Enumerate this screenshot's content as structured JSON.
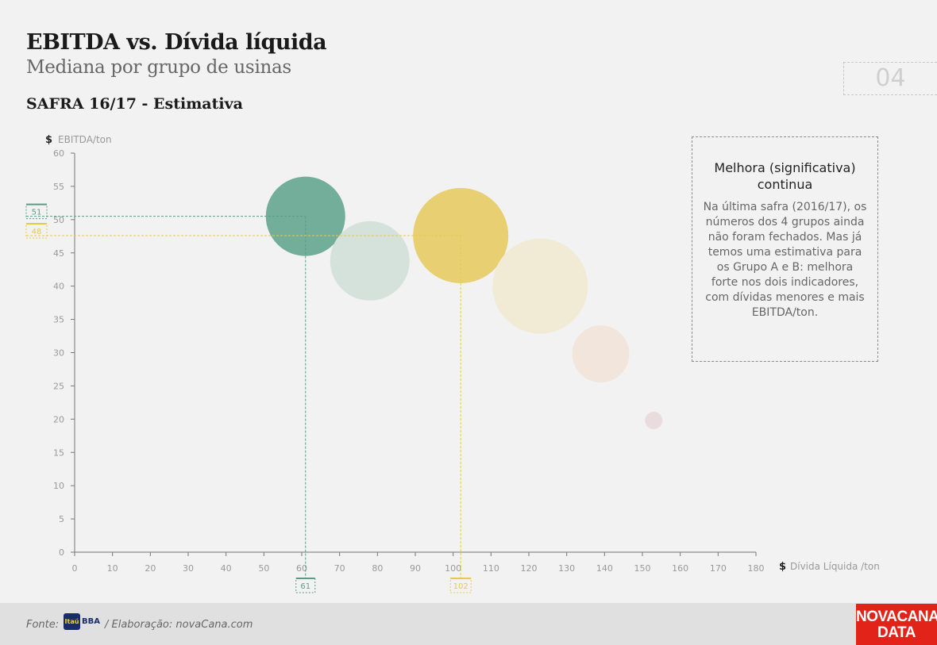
{
  "header": {
    "title": "EBITDA vs. Dívida líquida",
    "subtitle": "Mediana por grupo de usinas",
    "safra": "SAFRA 16/17 - Estimativa",
    "page_number": "04"
  },
  "note": {
    "title": "Melhora (significativa) continua",
    "body": "Na última safra (2016/17), os números dos 4 grupos ainda não foram fechados. Mas já temos uma estimativa para os Grupo A e B: melhora forte nos dois indicadores, com dívidas menores e mais EBITDA/ton."
  },
  "footer": {
    "fonte_label": "Fonte:",
    "logo_text": "Itaú",
    "logo_suffix": "BBA",
    "elaboracao": "/ Elaboração: novaCana.com"
  },
  "brand": {
    "line1": "NOVACANA",
    "line2": "DATA"
  },
  "chart_data": {
    "type": "scatter",
    "title": "EBITDA vs. Dívida líquida",
    "subtitle": "Mediana por grupo de usinas",
    "xlabel": "$ Dívida  Líquida /ton",
    "ylabel": "$ EBITDA/ton",
    "xlim": [
      0,
      180
    ],
    "ylim": [
      0,
      60
    ],
    "x_ticks": [
      0,
      10,
      20,
      30,
      40,
      50,
      60,
      70,
      80,
      90,
      100,
      110,
      120,
      130,
      140,
      150,
      160,
      170,
      180
    ],
    "y_ticks": [
      0,
      5,
      10,
      15,
      20,
      25,
      30,
      35,
      40,
      45,
      50,
      55,
      60
    ],
    "grid": false,
    "points": [
      {
        "x": 61,
        "y": 50.5,
        "r": 50,
        "color": "#72ae99",
        "opacity": 1.0
      },
      {
        "x": 78,
        "y": 43.8,
        "r": 50,
        "color": "#d5e1db",
        "opacity": 1.0
      },
      {
        "x": 102,
        "y": 47.6,
        "r": 60,
        "color": "#e8d072",
        "opacity": 1.0
      },
      {
        "x": 123,
        "y": 40,
        "r": 60,
        "color": "#f1ebd6",
        "opacity": 1.0
      },
      {
        "x": 139,
        "y": 29.8,
        "r": 36,
        "color": "#f2e6dc",
        "opacity": 1.0
      },
      {
        "x": 153,
        "y": 19.8,
        "r": 11,
        "color": "#eadcde",
        "opacity": 1.0
      }
    ],
    "annotations": [
      {
        "x": 61,
        "y": 50.5,
        "color": "#5c9c86",
        "x_label": "61",
        "y_label": "51"
      },
      {
        "x": 102,
        "y": 47.6,
        "color": "#e6c94a",
        "x_label": "102",
        "y_label": "48"
      }
    ]
  }
}
